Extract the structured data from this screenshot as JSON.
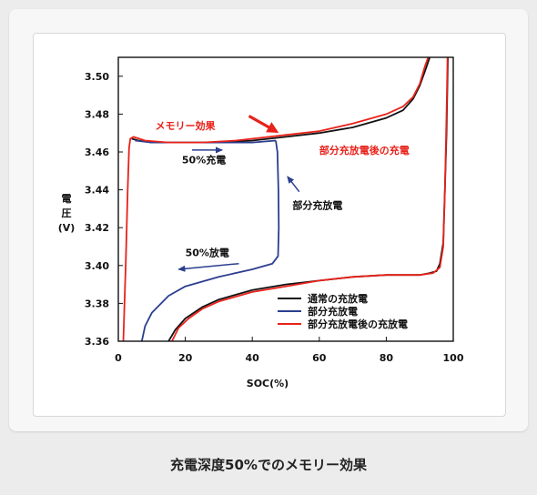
{
  "caption": "充電深度50%でのメモリー効果",
  "colors": {
    "black": "#111111",
    "blue": "#2b3e8f",
    "red": "#e8221a"
  },
  "chart_data": {
    "type": "line",
    "xlabel": "SOC(%)",
    "ylabel_chars": [
      "電",
      "圧",
      "(V)"
    ],
    "xlim": [
      0,
      100
    ],
    "ylim": [
      3.36,
      3.51
    ],
    "xticks": [
      0,
      20,
      40,
      60,
      80,
      100
    ],
    "yticks": [
      3.36,
      3.38,
      3.4,
      3.42,
      3.44,
      3.46,
      3.48,
      3.5
    ],
    "ytick_labels": [
      "3.36",
      "3.38",
      "3.40",
      "3.42",
      "3.44",
      "3.46",
      "3.48",
      "3.50"
    ],
    "series": [
      {
        "name": "通常の充放電",
        "color": "#111111",
        "segments": [
          [
            [
              4,
              3.467
            ],
            [
              6,
              3.466
            ],
            [
              10,
              3.465
            ],
            [
              20,
              3.465
            ],
            [
              30,
              3.465
            ],
            [
              40,
              3.466
            ],
            [
              50,
              3.468
            ],
            [
              60,
              3.47
            ],
            [
              70,
              3.473
            ],
            [
              80,
              3.478
            ],
            [
              85,
              3.482
            ],
            [
              88,
              3.488
            ],
            [
              90,
              3.495
            ],
            [
              92,
              3.505
            ],
            [
              93,
              3.51
            ]
          ],
          [
            [
              15,
              3.36
            ],
            [
              17,
              3.366
            ],
            [
              20,
              3.372
            ],
            [
              25,
              3.378
            ],
            [
              30,
              3.382
            ],
            [
              40,
              3.387
            ],
            [
              50,
              3.39
            ],
            [
              60,
              3.392
            ],
            [
              70,
              3.394
            ],
            [
              80,
              3.395
            ],
            [
              90,
              3.395
            ],
            [
              93,
              3.396
            ],
            [
              95,
              3.397
            ],
            [
              96,
              3.401
            ],
            [
              97,
              3.412
            ],
            [
              97.5,
              3.44
            ],
            [
              98,
              3.47
            ],
            [
              98.4,
              3.51
            ]
          ]
        ]
      },
      {
        "name": "部分充放電",
        "color": "#2b3e8f",
        "segments": [
          [
            [
              5,
              3.466
            ],
            [
              10,
              3.465
            ],
            [
              20,
              3.465
            ],
            [
              30,
              3.465
            ],
            [
              40,
              3.465
            ],
            [
              47,
              3.466
            ]
          ],
          [
            [
              47,
              3.466
            ],
            [
              47.5,
              3.46
            ],
            [
              47.8,
              3.44
            ],
            [
              47.9,
              3.42
            ],
            [
              47.7,
              3.405
            ],
            [
              46,
              3.401
            ],
            [
              40,
              3.398
            ],
            [
              30,
              3.394
            ],
            [
              20,
              3.389
            ],
            [
              15,
              3.384
            ],
            [
              10,
              3.375
            ],
            [
              8,
              3.368
            ],
            [
              7,
              3.36
            ]
          ]
        ]
      },
      {
        "name": "部分充放電後の充放電",
        "color": "#e8221a",
        "segments": [
          [
            [
              1.5,
              3.36
            ],
            [
              2.2,
              3.4
            ],
            [
              2.8,
              3.44
            ],
            [
              3.2,
              3.462
            ],
            [
              3.6,
              3.467
            ],
            [
              4.5,
              3.468
            ],
            [
              8,
              3.466
            ],
            [
              15,
              3.465
            ],
            [
              25,
              3.465
            ],
            [
              35,
              3.466
            ],
            [
              45,
              3.468
            ],
            [
              50,
              3.469
            ],
            [
              60,
              3.471
            ],
            [
              70,
              3.475
            ],
            [
              80,
              3.48
            ],
            [
              85,
              3.484
            ],
            [
              88,
              3.489
            ],
            [
              90,
              3.496
            ],
            [
              91.5,
              3.505
            ],
            [
              92.5,
              3.51
            ]
          ],
          [
            [
              16,
              3.36
            ],
            [
              18,
              3.367
            ],
            [
              21,
              3.372
            ],
            [
              25,
              3.377
            ],
            [
              30,
              3.381
            ],
            [
              40,
              3.386
            ],
            [
              50,
              3.389
            ],
            [
              60,
              3.392
            ],
            [
              70,
              3.394
            ],
            [
              80,
              3.395
            ],
            [
              90,
              3.395
            ],
            [
              94,
              3.396
            ],
            [
              96,
              3.399
            ],
            [
              97,
              3.41
            ],
            [
              97.5,
              3.44
            ],
            [
              98,
              3.48
            ],
            [
              98.3,
              3.51
            ]
          ]
        ]
      }
    ],
    "annotations": [
      {
        "text": "メモリー効果",
        "color": "#e8221a",
        "size": "large",
        "at": [
          11,
          3.472
        ],
        "arrow_from": [
          39,
          3.479
        ],
        "arrow_to": [
          47,
          3.471
        ]
      },
      {
        "text": "部分充放電後の充電",
        "color": "#e8221a",
        "at": [
          60,
          3.459
        ]
      },
      {
        "text": "50%充電",
        "color": "#111111",
        "at": [
          19,
          3.454
        ],
        "arrow_from": [
          22,
          3.461
        ],
        "arrow_to": [
          31,
          3.461
        ],
        "arrow_color": "#2b3e8f"
      },
      {
        "text": "部分充放電",
        "color": "#111111",
        "at": [
          52,
          3.43
        ],
        "arrow_from": [
          54,
          3.439
        ],
        "arrow_to": [
          50.5,
          3.447
        ],
        "arrow_color": "#2b3e8f"
      },
      {
        "text": "50%放電",
        "color": "#111111",
        "at": [
          20,
          3.405
        ],
        "arrow_from": [
          36,
          3.401
        ],
        "arrow_to": [
          18,
          3.398
        ],
        "arrow_color": "#2b3e8f"
      }
    ]
  }
}
